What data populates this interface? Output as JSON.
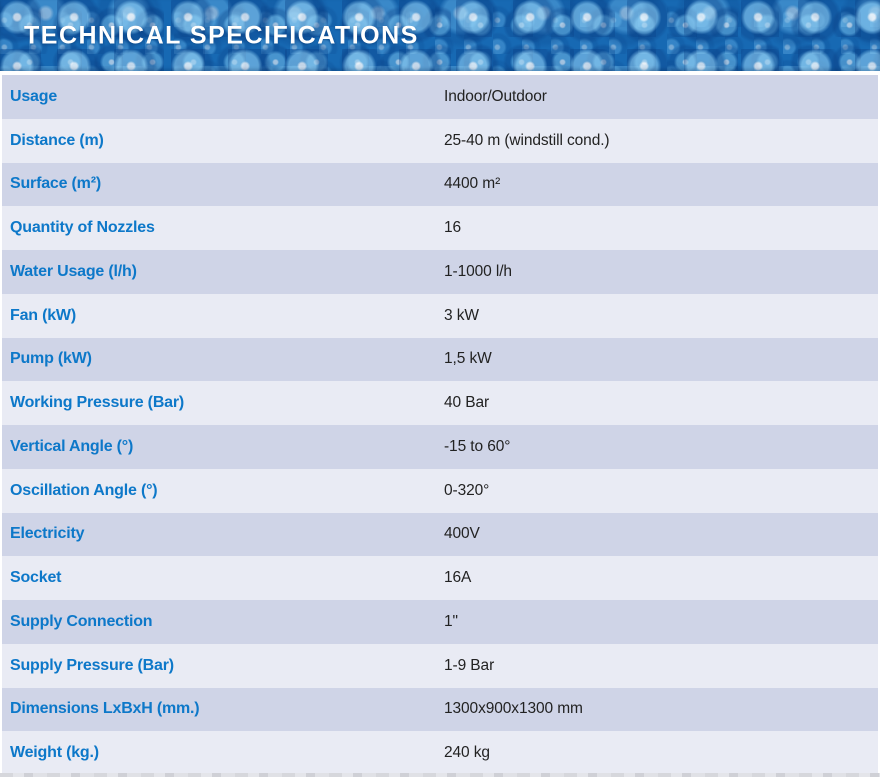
{
  "header": {
    "title": "TECHNICAL SPECIFICATIONS"
  },
  "colors": {
    "banner_blue": "#1769b3",
    "label_blue": "#0d78c9",
    "row_dark": "#cfd4e7",
    "row_light": "#e9ebf4",
    "value_text": "#222222",
    "title_text": "#ffffff"
  },
  "table": {
    "rows": [
      {
        "label": "Usage",
        "value": "Indoor/Outdoor"
      },
      {
        "label": "Distance (m)",
        "value": "25-40 m (windstill cond.)"
      },
      {
        "label": "Surface (m²)",
        "value": "4400 m²"
      },
      {
        "label": "Quantity of Nozzles",
        "value": "16"
      },
      {
        "label": "Water Usage (l/h)",
        "value": "1-1000 l/h"
      },
      {
        "label": "Fan (kW)",
        "value": "3 kW"
      },
      {
        "label": "Pump (kW)",
        "value": "1,5 kW"
      },
      {
        "label": "Working Pressure (Bar)",
        "value": "40 Bar"
      },
      {
        "label": "Vertical Angle (°)",
        "value": "-15 to 60°"
      },
      {
        "label": "Oscillation Angle (°)",
        "value": "0-320°"
      },
      {
        "label": "Electricity",
        "value": "400V"
      },
      {
        "label": "Socket",
        "value": "16A"
      },
      {
        "label": "Supply Connection",
        "value": "1\""
      },
      {
        "label": "Supply Pressure (Bar)",
        "value": "1-9 Bar"
      },
      {
        "label": "Dimensions LxBxH (mm.)",
        "value": "1300x900x1300 mm"
      },
      {
        "label": "Weight (kg.)",
        "value": "240 kg"
      }
    ]
  }
}
